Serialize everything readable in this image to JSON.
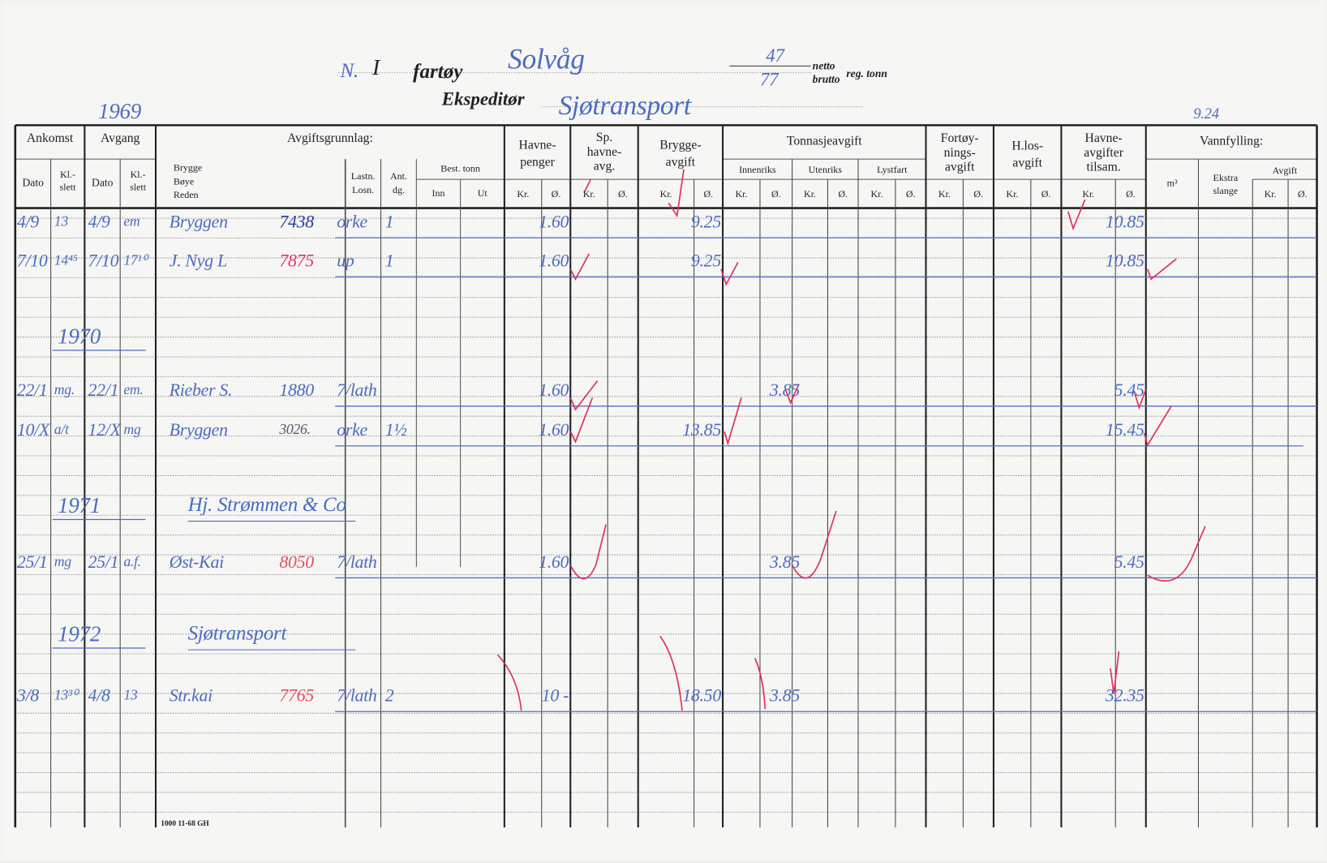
{
  "card": {
    "no_label": "N.",
    "no_value": "I",
    "vessel_label": "fartøy",
    "vessel_name": "Solvåg",
    "netto_value": "47",
    "brutto_value": "77",
    "netto_label": "netto",
    "brutto_label": "brutto",
    "reg_tonn_label": "reg. tonn",
    "expeditor_label": "Ekspeditør",
    "expeditor_value": "Sjøtransport",
    "corner_note": "9.24",
    "footer_print": "1000 11-68 GH"
  },
  "columns": {
    "ankomst": "Ankomst",
    "avgang": "Avgang",
    "dato": "Dato",
    "kl_slett": "Kl.-\nslett",
    "avgiftsgrunnlag": "Avgiftsgrunnlag:",
    "brygge": "Brygge",
    "boye": "Bøye",
    "reden": "Reden",
    "lastn": "Lastn.",
    "losn": "Losn.",
    "ant": "Ant.",
    "dg": "dg.",
    "best_tonn": "Best. tonn",
    "inn": "Inn",
    "ut": "Ut",
    "havnepenger": "Havne-\npenger",
    "sp_havneavg": "Sp.\nhavne-\navg.",
    "bryggeavgift": "Brygge-\navgift",
    "tonnasjeavgift": "Tonnasjeavgift",
    "innenriks": "Innenriks",
    "utenriks": "Utenriks",
    "lystfart": "Lystfart",
    "fortoyningsavgift": "Fortøy-\nnings-\navgift",
    "hlosavgift": "H.los-\navgift",
    "havneavgifter_tilsam": "Havne-\navgifter\ntilsam.",
    "vannfylling": "Vannfylling:",
    "m3": "m³",
    "ekstra_slange": "Ekstra\nslange",
    "avgift": "Avgift",
    "kr": "Kr.",
    "ore": "Ø."
  },
  "header_year": "1969",
  "entries": [
    {
      "ank_dato": "4/9",
      "ank_kl": "13",
      "avg_dato": "4/9",
      "avg_kl": "em",
      "brygge": "Bryggen",
      "ref": "7438",
      "ref_color": "dark",
      "lastn": "orke",
      "ant": "1",
      "havnepenger": "1.60",
      "bryggeavgift": "9.25",
      "tilsam": "10.85"
    },
    {
      "ank_dato": "7/10",
      "ank_kl": "14⁴⁵",
      "avg_dato": "7/10",
      "avg_kl": "17¹⁰",
      "brygge": "J. Nyg L",
      "ref": "7875",
      "ref_color": "mag",
      "lastn": "up",
      "ant": "1",
      "havnepenger": "1.60",
      "bryggeavgift": "9.25",
      "tilsam": "10.85"
    },
    {
      "year": "1970"
    },
    {
      "ank_dato": "22/1",
      "ank_kl": "mg.",
      "avg_dato": "22/1",
      "avg_kl": "em.",
      "brygge": "Rieber S.",
      "ref": "1880",
      "ref_color": "plain",
      "lastn": "7/lath",
      "havnepenger": "1.60",
      "innenriks": "3.85",
      "tilsam": "5.45"
    },
    {
      "ank_dato": "10/X",
      "ank_kl": "a/t",
      "avg_dato": "12/X",
      "avg_kl": "mg",
      "brygge": "Bryggen",
      "ref": "3026.",
      "ref_color": "grey",
      "lastn": "orke",
      "ant": "1½",
      "havnepenger": "1.60",
      "bryggeavgift": "13.85",
      "tilsam": "15.45"
    },
    {
      "year": "1971",
      "note": "Hj. Strømmen & Co"
    },
    {
      "ank_dato": "25/1",
      "ank_kl": "mg",
      "avg_dato": "25/1",
      "avg_kl": "a.f.",
      "brygge": "Øst-Kai",
      "ref": "8050",
      "ref_color": "red",
      "lastn": "7/lath",
      "havnepenger": "1.60",
      "innenriks": "3.85",
      "tilsam": "5.45"
    },
    {
      "year": "1972",
      "note": "Sjøtransport"
    },
    {
      "ank_dato": "3/8",
      "ank_kl": "13³⁰",
      "avg_dato": "4/8",
      "avg_kl": "13",
      "brygge": "Str.kai",
      "ref": "7765",
      "ref_color": "red",
      "lastn": "7/lath",
      "ant": "2",
      "havnepenger": "10 -",
      "bryggeavgift": "18.50",
      "innenriks": "3.85",
      "tilsam": "32.35"
    }
  ],
  "colors": {
    "ink_blue": "#4b6cc3",
    "check_red": "#e0305a",
    "paper": "#f6f6f4",
    "rule": "#222222"
  }
}
